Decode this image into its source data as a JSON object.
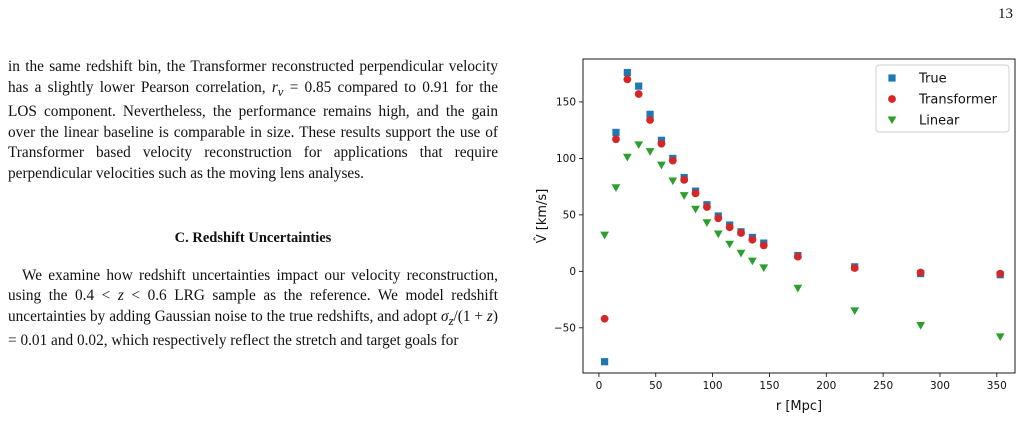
{
  "page_number": "13",
  "left_column": {
    "paragraph1": {
      "part1": "in the same redshift bin, the Transformer reconstructed perpendicular velocity has a slightly lower Pearson correlation, ",
      "math": "r",
      "sub": "v",
      "part2": " = 0.85 compared to 0.91 for the LOS component. Nevertheless, the performance remains high, and the gain over the linear baseline is comparable in size. These results support the use of Transformer based velocity reconstruction for applications that require perpendicular velocities such as the moving lens analyses."
    },
    "section_heading": "C.   Redshift Uncertainties",
    "paragraph2": {
      "part1": "We examine how redshift uncertainties impact our velocity reconstruction, using the 0.4 < ",
      "z1": "z",
      "part2": " < 0.6 LRG sample as the reference. We model redshift uncertainties by adding Gaussian noise to the true redshifts, and adopt ",
      "sigma": "σ",
      "sigma_sub": "z",
      "part3": "/(1 + ",
      "z2": "z",
      "part4": ") = 0.01 and 0.02, which respectively reflect the stretch and target goals for"
    }
  },
  "chart_data": {
    "type": "scatter",
    "xlabel": "r [Mpc]",
    "ylabel": "V̂ [km/s]",
    "xlim": [
      -14,
      366
    ],
    "ylim": [
      -90,
      188
    ],
    "xticks": [
      0,
      50,
      100,
      150,
      200,
      250,
      300,
      350
    ],
    "yticks": [
      -50,
      0,
      50,
      100,
      150
    ],
    "grid": false,
    "legend_position": "top-right",
    "x": [
      5,
      15,
      25,
      35,
      45,
      55,
      65,
      75,
      85,
      95,
      105,
      115,
      125,
      135,
      145,
      175,
      225,
      283,
      353
    ],
    "series": [
      {
        "name": "True",
        "marker": "square",
        "color": "#1f77b4",
        "values": [
          -80,
          123,
          176,
          164,
          139,
          116,
          100,
          83,
          71,
          59,
          49,
          41,
          35,
          30,
          25,
          14,
          4,
          -2,
          -3
        ]
      },
      {
        "name": "Transformer",
        "marker": "circle",
        "color": "#d62728",
        "values": [
          -42,
          117,
          170,
          157,
          134,
          113,
          98,
          81,
          69,
          57,
          47,
          39,
          34,
          28,
          23,
          13,
          3,
          -1,
          -2
        ]
      },
      {
        "name": "Linear",
        "marker": "triangle-down",
        "color": "#2ca02c",
        "values": [
          32,
          74,
          101,
          112,
          106,
          94,
          80,
          67,
          55,
          43,
          33,
          24,
          16,
          9,
          3,
          -15,
          -35,
          -48,
          -58
        ]
      }
    ]
  }
}
